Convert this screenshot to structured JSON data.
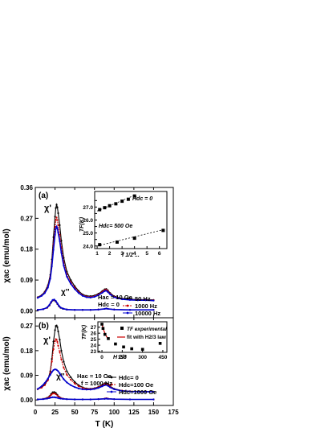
{
  "chart_data": [
    {
      "type": "line",
      "panel_label": "(a)",
      "ylabel": "χac (emu/mol)",
      "xlim": [
        0,
        175
      ],
      "ylim": [
        -0.02,
        0.36
      ],
      "x_ticks": [
        "0",
        "25",
        "50",
        "75",
        "100",
        "125",
        "150",
        "175"
      ],
      "y_ticks": [
        "0.00",
        "0.09",
        "0.18",
        "0.27",
        "0.36"
      ],
      "y_tick_values": [
        0,
        0.09,
        0.18,
        0.27,
        0.36
      ],
      "annotations": {
        "chi_real": "χ'",
        "chi_imag": "χ''",
        "hac": "Hac = 10 Oe",
        "hdc": "Hdc = 0"
      },
      "series": [
        {
          "name": "50 Hz",
          "color": "#000000",
          "x": [
            3,
            8,
            12,
            16,
            19,
            21,
            23,
            25,
            26,
            27,
            28,
            29,
            31,
            33,
            36,
            40,
            45,
            50,
            55,
            60,
            65,
            70,
            75,
            80,
            85,
            88,
            90,
            92,
            95,
            100,
            110,
            120,
            130,
            140,
            150
          ],
          "y": [
            0.04,
            0.046,
            0.056,
            0.075,
            0.105,
            0.15,
            0.215,
            0.275,
            0.3,
            0.31,
            0.302,
            0.285,
            0.25,
            0.205,
            0.155,
            0.115,
            0.09,
            0.072,
            0.058,
            0.048,
            0.044,
            0.043,
            0.045,
            0.05,
            0.058,
            0.063,
            0.064,
            0.06,
            0.052,
            0.043,
            0.036,
            0.034,
            0.033,
            0.033,
            0.032
          ]
        },
        {
          "name": "1000 Hz",
          "color": "#cc0000",
          "x": [
            3,
            8,
            12,
            16,
            19,
            21,
            23,
            25,
            26,
            27,
            28,
            29,
            31,
            33,
            36,
            40,
            45,
            50,
            55,
            60,
            65,
            70,
            75,
            80,
            85,
            88,
            90,
            92,
            95,
            100,
            110,
            120,
            130,
            140,
            150
          ],
          "y": [
            0.039,
            0.045,
            0.054,
            0.072,
            0.1,
            0.14,
            0.195,
            0.245,
            0.265,
            0.272,
            0.265,
            0.25,
            0.222,
            0.185,
            0.142,
            0.107,
            0.084,
            0.068,
            0.055,
            0.046,
            0.042,
            0.041,
            0.043,
            0.048,
            0.056,
            0.061,
            0.062,
            0.058,
            0.05,
            0.042,
            0.035,
            0.033,
            0.032,
            0.032,
            0.031
          ]
        },
        {
          "name": "10000 Hz",
          "color": "#0000cc",
          "x": [
            3,
            8,
            12,
            16,
            19,
            21,
            23,
            25,
            26,
            27,
            28,
            29,
            31,
            33,
            36,
            40,
            45,
            50,
            55,
            60,
            65,
            70,
            75,
            80,
            85,
            88,
            90,
            92,
            95,
            100,
            110,
            120,
            130,
            140,
            150
          ],
          "y": [
            0.038,
            0.044,
            0.052,
            0.068,
            0.094,
            0.13,
            0.178,
            0.222,
            0.24,
            0.246,
            0.241,
            0.228,
            0.203,
            0.17,
            0.132,
            0.1,
            0.079,
            0.064,
            0.052,
            0.044,
            0.04,
            0.039,
            0.041,
            0.046,
            0.053,
            0.058,
            0.059,
            0.055,
            0.048,
            0.04,
            0.034,
            0.032,
            0.031,
            0.031,
            0.03
          ]
        },
        {
          "name": "χ'' 50 Hz",
          "color": "#000000",
          "x": [
            3,
            10,
            15,
            18,
            20,
            22,
            24,
            26,
            28,
            30,
            32,
            35,
            40,
            50,
            60,
            70,
            80,
            88,
            90,
            92,
            100,
            120,
            150
          ],
          "y": [
            0.003,
            0.005,
            0.009,
            0.016,
            0.024,
            0.03,
            0.031,
            0.027,
            0.02,
            0.013,
            0.009,
            0.006,
            0.004,
            0.003,
            0.003,
            0.003,
            0.004,
            0.006,
            0.007,
            0.006,
            0.004,
            0.003,
            0.003
          ]
        },
        {
          "name": "χ'' 1000 Hz",
          "color": "#cc0000",
          "x": [
            3,
            10,
            15,
            18,
            20,
            22,
            24,
            26,
            28,
            30,
            32,
            35,
            40,
            50,
            60,
            70,
            80,
            88,
            90,
            92,
            100,
            120,
            150
          ],
          "y": [
            0.003,
            0.005,
            0.009,
            0.017,
            0.025,
            0.031,
            0.032,
            0.028,
            0.021,
            0.014,
            0.01,
            0.007,
            0.004,
            0.003,
            0.003,
            0.003,
            0.004,
            0.006,
            0.007,
            0.006,
            0.004,
            0.003,
            0.003
          ]
        },
        {
          "name": "χ'' 10000 Hz",
          "color": "#0000cc",
          "x": [
            3,
            10,
            15,
            18,
            20,
            22,
            24,
            26,
            28,
            30,
            32,
            35,
            40,
            50,
            60,
            70,
            80,
            88,
            90,
            92,
            100,
            120,
            150
          ],
          "y": [
            0.003,
            0.005,
            0.01,
            0.018,
            0.026,
            0.032,
            0.033,
            0.029,
            0.022,
            0.015,
            0.01,
            0.007,
            0.004,
            0.003,
            0.003,
            0.003,
            0.004,
            0.006,
            0.007,
            0.006,
            0.004,
            0.003,
            0.003
          ]
        }
      ],
      "legend": [
        "50 Hz",
        "1000 Hz",
        "10000 Hz"
      ],
      "legend_placement": "bottom-right",
      "inset": {
        "type": "scatter",
        "ylabel": "TF(K)",
        "xlabel": "f 1/2 ...",
        "xlim": [
          0.8,
          6.6
        ],
        "ylim": [
          23.8,
          28.2
        ],
        "x_ticks": [
          "1",
          "2",
          "3",
          "4",
          "5",
          "6"
        ],
        "x_tick_values": [
          1,
          2,
          3,
          4,
          5,
          6
        ],
        "y_ticks": [
          "24.0",
          "24.5",
          "25.0",
          "25.5",
          "26.0",
          "26.5",
          "27.0",
          "27.5"
        ],
        "y_tick_values": [
          24.0,
          24.5,
          25.0,
          25.5,
          26.0,
          26.5,
          27.0,
          27.5
        ],
        "label_top": "Hdc = 0",
        "label_bottom": "Hdc= 500 Oe",
        "series": [
          {
            "name": "Hdc = 0",
            "x": [
              1.2,
              1.6,
              2.0,
              2.5,
              3.0,
              3.5,
              4.0
            ],
            "y": [
              26.8,
              26.95,
              27.1,
              27.25,
              27.45,
              27.6,
              27.85
            ],
            "fit": [
              [
                1.0,
                26.7
              ],
              [
                4.0,
                27.9
              ]
            ]
          },
          {
            "name": "Hdc= 500 Oe",
            "x": [
              1.2,
              2.6,
              4.0,
              6.3
            ],
            "y": [
              24.1,
              24.3,
              24.6,
              25.2
            ],
            "fit": [
              [
                1.0,
                24.0
              ],
              [
                6.5,
                25.3
              ]
            ]
          }
        ]
      }
    },
    {
      "type": "line",
      "panel_label": "(b)",
      "ylabel": "χac (emu/mol)",
      "xlabel": "T (K)",
      "xlim": [
        0,
        175
      ],
      "ylim": [
        -0.02,
        0.3
      ],
      "x_ticks": [
        "0",
        "25",
        "50",
        "75",
        "100",
        "125",
        "150",
        "175"
      ],
      "y_ticks": [
        "0.00",
        "0.09",
        "0.18",
        "0.27"
      ],
      "y_tick_values": [
        0,
        0.09,
        0.18,
        0.27
      ],
      "annotations": {
        "chi_real": "χ'",
        "chi_imag": "χ''",
        "hac": "Hac = 10 Oe",
        "freq": "f = 1000 Hz"
      },
      "series": [
        {
          "name": "Hdc= 0",
          "color": "#000000",
          "x": [
            3,
            8,
            12,
            16,
            19,
            21,
            23,
            25,
            26,
            27,
            28,
            29,
            31,
            33,
            36,
            40,
            45,
            50,
            55,
            60,
            65,
            70,
            75,
            80,
            85,
            88,
            90,
            92,
            95,
            100,
            110,
            120,
            130,
            140,
            150
          ],
          "y": [
            0.04,
            0.046,
            0.056,
            0.075,
            0.105,
            0.15,
            0.213,
            0.255,
            0.27,
            0.272,
            0.266,
            0.25,
            0.22,
            0.18,
            0.14,
            0.105,
            0.083,
            0.066,
            0.054,
            0.046,
            0.042,
            0.041,
            0.043,
            0.048,
            0.056,
            0.061,
            0.062,
            0.058,
            0.05,
            0.041,
            0.034,
            0.032,
            0.031,
            0.031,
            0.03
          ]
        },
        {
          "name": "Hdc=100 Oe",
          "color": "#cc0000",
          "x": [
            3,
            8,
            12,
            16,
            19,
            21,
            23,
            25,
            26,
            27,
            28,
            29,
            31,
            33,
            36,
            40,
            45,
            50,
            55,
            60,
            65,
            70,
            75,
            80,
            85,
            88,
            90,
            92,
            95,
            100,
            110,
            120,
            130,
            140,
            150
          ],
          "y": [
            0.039,
            0.045,
            0.054,
            0.072,
            0.1,
            0.14,
            0.185,
            0.215,
            0.222,
            0.22,
            0.212,
            0.198,
            0.175,
            0.148,
            0.118,
            0.092,
            0.074,
            0.06,
            0.05,
            0.044,
            0.041,
            0.04,
            0.042,
            0.047,
            0.054,
            0.058,
            0.059,
            0.056,
            0.049,
            0.04,
            0.034,
            0.032,
            0.031,
            0.031,
            0.03
          ]
        },
        {
          "name": "Hdc=1000 Oe",
          "color": "#0000cc",
          "x": [
            3,
            8,
            12,
            16,
            19,
            21,
            23,
            25,
            27,
            29,
            31,
            33,
            36,
            40,
            45,
            50,
            55,
            60,
            65,
            70,
            75,
            80,
            85,
            88,
            90,
            92,
            95,
            100,
            110,
            120,
            130,
            140,
            150
          ],
          "y": [
            0.04,
            0.05,
            0.062,
            0.078,
            0.092,
            0.102,
            0.109,
            0.112,
            0.11,
            0.105,
            0.097,
            0.088,
            0.076,
            0.064,
            0.054,
            0.047,
            0.042,
            0.039,
            0.038,
            0.038,
            0.04,
            0.044,
            0.05,
            0.054,
            0.055,
            0.052,
            0.046,
            0.039,
            0.033,
            0.031,
            0.03,
            0.03,
            0.03
          ]
        },
        {
          "name": "χ'' Hdc= 0",
          "color": "#000000",
          "x": [
            3,
            10,
            15,
            18,
            20,
            22,
            24,
            26,
            28,
            30,
            32,
            35,
            40,
            50,
            60,
            70,
            80,
            88,
            90,
            92,
            100,
            120,
            150
          ],
          "y": [
            0.002,
            0.004,
            0.008,
            0.014,
            0.022,
            0.028,
            0.029,
            0.026,
            0.019,
            0.012,
            0.008,
            0.005,
            0.003,
            0.002,
            0.002,
            0.002,
            0.003,
            0.005,
            0.006,
            0.005,
            0.003,
            0.002,
            0.002
          ]
        },
        {
          "name": "χ'' Hdc=100 Oe",
          "color": "#cc0000",
          "x": [
            3,
            10,
            15,
            18,
            20,
            22,
            24,
            26,
            28,
            30,
            32,
            35,
            40,
            50,
            60,
            70,
            80,
            88,
            90,
            92,
            100,
            120,
            150
          ],
          "y": [
            0.002,
            0.004,
            0.007,
            0.012,
            0.018,
            0.023,
            0.024,
            0.021,
            0.016,
            0.011,
            0.007,
            0.005,
            0.003,
            0.002,
            0.002,
            0.002,
            0.003,
            0.005,
            0.006,
            0.005,
            0.003,
            0.002,
            0.002
          ]
        },
        {
          "name": "χ'' Hdc=1000 Oe",
          "color": "#0000cc",
          "x": [
            3,
            10,
            15,
            18,
            20,
            22,
            24,
            26,
            28,
            30,
            32,
            35,
            40,
            50,
            60,
            70,
            80,
            88,
            90,
            92,
            100,
            120,
            150
          ],
          "y": [
            0.002,
            0.003,
            0.005,
            0.007,
            0.009,
            0.01,
            0.01,
            0.009,
            0.008,
            0.006,
            0.005,
            0.004,
            0.003,
            0.002,
            0.002,
            0.002,
            0.003,
            0.004,
            0.005,
            0.004,
            0.003,
            0.002,
            0.002
          ]
        }
      ],
      "legend": [
        "Hdc= 0",
        "Hdc=100 Oe",
        "Hdc=1000 Oe"
      ],
      "legend_placement": "bottom-right",
      "inset": {
        "type": "scatter",
        "ylabel": "TF(K)",
        "xlabel": "H 2/3",
        "xlim": [
          -30,
          480
        ],
        "ylim": [
          22.8,
          27.9
        ],
        "x_ticks": [
          "0",
          "150",
          "300",
          "450"
        ],
        "x_tick_values": [
          0,
          150,
          300,
          450
        ],
        "y_ticks": [
          "23",
          "24",
          "25",
          "26",
          "27"
        ],
        "y_tick_values": [
          23,
          24,
          25,
          26,
          27
        ],
        "legend": [
          "TF experimental",
          "fit with H2/3 law"
        ],
        "points": {
          "x": [
            0,
            8,
            22,
            47,
            100,
            160,
            220,
            300,
            430
          ],
          "y": [
            27.5,
            26.8,
            25.8,
            25.1,
            24.2,
            23.7,
            23.4,
            23.3,
            24.3
          ]
        },
        "fit": {
          "x": [
            0,
            5,
            10,
            18,
            26,
            35,
            45
          ],
          "y": [
            27.6,
            27.1,
            26.7,
            26.2,
            25.8,
            25.4,
            25.1
          ]
        }
      }
    }
  ]
}
